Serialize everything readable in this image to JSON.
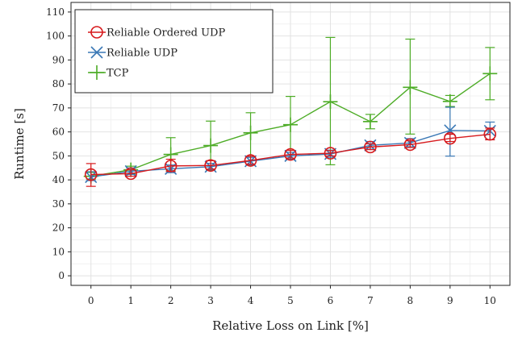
{
  "chart_data": {
    "type": "line",
    "xlabel": "Relative Loss on Link [%]",
    "ylabel": "Runtime [s]",
    "x": [
      0,
      1,
      2,
      3,
      4,
      5,
      6,
      7,
      8,
      9,
      10
    ],
    "xlim": [
      -0.5,
      10.5
    ],
    "ylim": [
      -4,
      114
    ],
    "yticks": [
      0,
      10,
      20,
      30,
      40,
      50,
      60,
      70,
      80,
      90,
      100,
      110
    ],
    "grid": true,
    "legend_position": "top-left",
    "series": [
      {
        "name": "Reliable Ordered UDP",
        "color": "#d7191c",
        "marker": "circle",
        "values": [
          42.2,
          42.6,
          45.8,
          46.0,
          48.1,
          50.6,
          51.1,
          53.7,
          54.7,
          57.3,
          59.0
        ],
        "err_low": [
          37.3,
          41.5,
          43.5,
          44.5,
          46.6,
          49.1,
          50.0,
          52.6,
          53.5,
          56.0,
          56.7
        ],
        "err_high": [
          46.8,
          44.2,
          48.6,
          48.0,
          49.8,
          52.3,
          52.2,
          55.0,
          56.3,
          59.0,
          61.6
        ]
      },
      {
        "name": "Reliable UDP",
        "color": "#3a78b5",
        "marker": "x",
        "values": [
          41.2,
          43.6,
          44.6,
          45.5,
          47.8,
          50.0,
          50.8,
          54.4,
          55.4,
          60.6,
          60.4
        ],
        "err_low": [
          39.7,
          42.2,
          43.0,
          44.2,
          46.3,
          48.6,
          49.4,
          52.8,
          53.8,
          49.9,
          56.8
        ],
        "err_high": [
          43.4,
          45.0,
          46.2,
          46.9,
          49.4,
          51.5,
          52.4,
          56.0,
          57.2,
          70.3,
          64.1
        ]
      },
      {
        "name": "TCP",
        "color": "#4dac26",
        "marker": "plus",
        "values": [
          41.5,
          44.2,
          50.6,
          54.3,
          59.6,
          63.0,
          72.6,
          64.3,
          78.6,
          72.7,
          84.3
        ],
        "err_low": [
          40.3,
          42.6,
          43.8,
          44.0,
          46.1,
          48.6,
          46.3,
          61.3,
          59.1,
          70.6,
          73.4
        ],
        "err_high": [
          43.1,
          45.7,
          57.6,
          64.5,
          68.0,
          74.8,
          99.4,
          67.3,
          98.7,
          75.2,
          95.2
        ]
      }
    ]
  }
}
